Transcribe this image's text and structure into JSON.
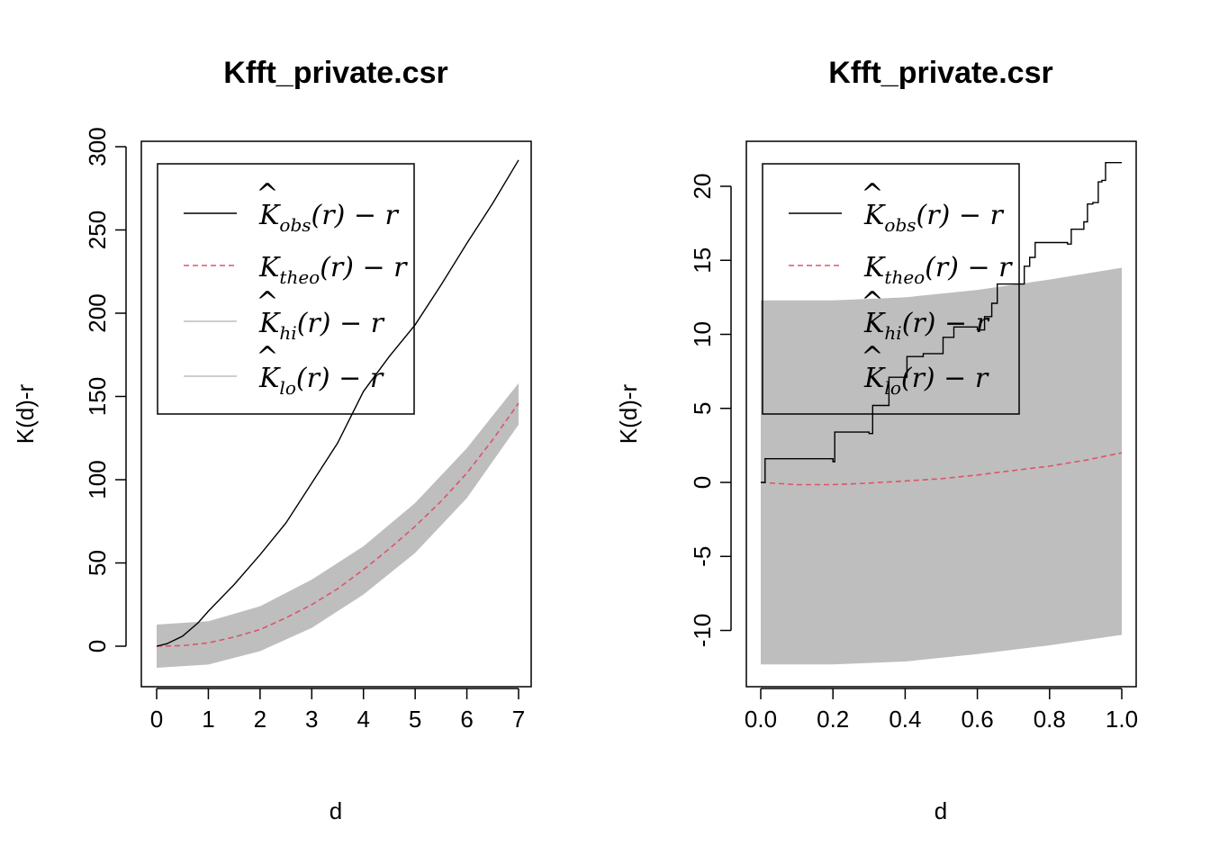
{
  "colors": {
    "obs": "#000000",
    "theo": "#DF536B",
    "envelope": "#BEBEBE",
    "axis": "#000000"
  },
  "legend_labels": {
    "obs": {
      "sym": "K",
      "sub": "obs",
      "tail": "(r) − r"
    },
    "theo": {
      "sym": "K",
      "sub": "theo",
      "tail": "(r) − r"
    },
    "hi": {
      "sym": "K",
      "sub": "hi",
      "tail": "(r) − r"
    },
    "lo": {
      "sym": "K",
      "sub": "lo",
      "tail": "(r) − r"
    }
  },
  "chart_data": [
    {
      "type": "line",
      "title": "Kfft_private.csr",
      "xlabel": "d",
      "ylabel": "K(d)-r",
      "xlim": [
        0,
        7
      ],
      "ylim": [
        -13,
        300
      ],
      "xticks": [
        0,
        1,
        2,
        3,
        4,
        5,
        6,
        7
      ],
      "yticks": [
        0,
        50,
        100,
        150,
        200,
        250,
        300
      ],
      "legend_position": "top-left",
      "series": {
        "obs": {
          "x": [
            0,
            0.2,
            0.5,
            0.8,
            1,
            1.5,
            2,
            2.5,
            3,
            3.5,
            4,
            4.5,
            5,
            5.5,
            6,
            6.5,
            7
          ],
          "y": [
            0,
            1.5,
            6,
            14,
            21,
            37,
            55,
            74,
            98,
            122,
            153,
            174,
            193,
            217,
            242,
            266,
            292
          ]
        },
        "theo": {
          "x": [
            0,
            0.5,
            1,
            1.5,
            2,
            2.5,
            3,
            3.5,
            4,
            4.5,
            5,
            5.5,
            6,
            6.5,
            7
          ],
          "y": [
            0,
            0.3,
            2,
            5.5,
            10,
            17,
            25,
            34.5,
            46,
            58.5,
            72,
            87,
            104,
            124,
            146
          ]
        },
        "hi": {
          "x": [
            0,
            1,
            2,
            3,
            4,
            5,
            6,
            7
          ],
          "y": [
            13,
            15,
            24,
            40,
            60,
            86,
            119,
            158
          ]
        },
        "lo": {
          "x": [
            0,
            1,
            2,
            3,
            4,
            5,
            6,
            7
          ],
          "y": [
            -13,
            -11,
            -3,
            11,
            31,
            56,
            89,
            133
          ]
        }
      }
    },
    {
      "type": "line",
      "title": "Kfft_private.csr",
      "xlabel": "d",
      "ylabel": "K(d)-r",
      "xlim": [
        0,
        1
      ],
      "ylim": [
        -12.5,
        22
      ],
      "xticks": [
        0.0,
        0.2,
        0.4,
        0.6,
        0.8,
        1.0
      ],
      "xtick_labels": [
        "0.0",
        "0.2",
        "0.4",
        "0.6",
        "0.8",
        "1.0"
      ],
      "yticks": [
        -10,
        -5,
        0,
        5,
        10,
        15,
        20
      ],
      "legend_position": "top-left",
      "series": {
        "obs_steps": [
          [
            0,
            0
          ],
          [
            0.012,
            1.6
          ],
          [
            0.2,
            1.4
          ],
          [
            0.205,
            3.4
          ],
          [
            0.3,
            3.3
          ],
          [
            0.31,
            5.2
          ],
          [
            0.35,
            5.2
          ],
          [
            0.355,
            7.1
          ],
          [
            0.4,
            7.1
          ],
          [
            0.405,
            8.5
          ],
          [
            0.45,
            8.7
          ],
          [
            0.5,
            8.7
          ],
          [
            0.505,
            9.8
          ],
          [
            0.53,
            9.8
          ],
          [
            0.535,
            10.5
          ],
          [
            0.6,
            10.3
          ],
          [
            0.62,
            11.2
          ],
          [
            0.64,
            12.1
          ],
          [
            0.655,
            13.4
          ],
          [
            0.72,
            13.4
          ],
          [
            0.73,
            14.6
          ],
          [
            0.745,
            15.2
          ],
          [
            0.76,
            16.2
          ],
          [
            0.85,
            16.1
          ],
          [
            0.86,
            17.1
          ],
          [
            0.895,
            17.6
          ],
          [
            0.905,
            18.8
          ],
          [
            0.92,
            18.9
          ],
          [
            0.935,
            20.3
          ],
          [
            0.945,
            20.4
          ],
          [
            0.955,
            21.6
          ],
          [
            1.0,
            21.6
          ]
        ],
        "theo": {
          "x": [
            0,
            0.1,
            0.2,
            0.3,
            0.4,
            0.5,
            0.6,
            0.7,
            0.8,
            0.9,
            1.0
          ],
          "y": [
            0,
            -0.15,
            -0.15,
            -0.05,
            0.1,
            0.25,
            0.5,
            0.8,
            1.1,
            1.5,
            2.0
          ]
        },
        "hi": {
          "x": [
            0,
            0.2,
            0.4,
            0.6,
            0.8,
            1.0
          ],
          "y": [
            12.3,
            12.3,
            12.5,
            13.0,
            13.7,
            14.5
          ]
        },
        "lo": {
          "x": [
            0,
            0.2,
            0.4,
            0.6,
            0.8,
            1.0
          ],
          "y": [
            -12.3,
            -12.3,
            -12.1,
            -11.6,
            -11.0,
            -10.3
          ]
        }
      }
    }
  ]
}
